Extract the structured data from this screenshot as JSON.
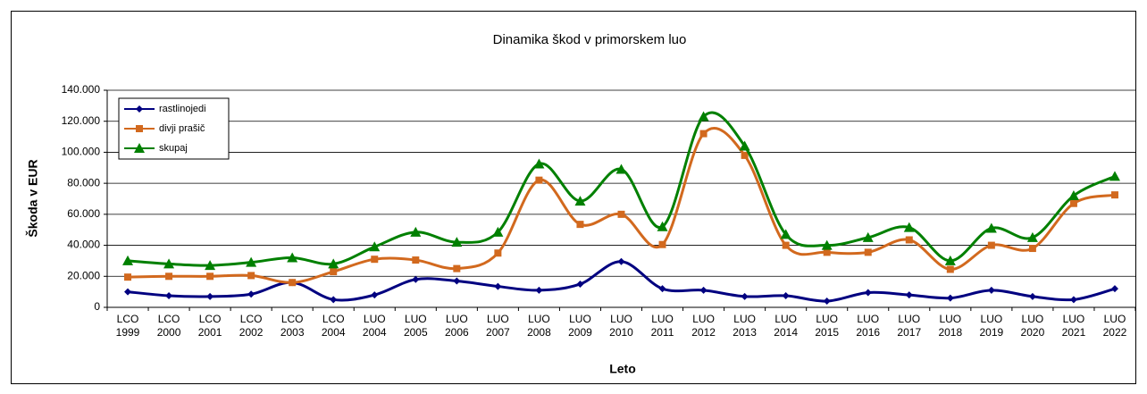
{
  "chart_data": {
    "type": "line",
    "title": "Dinamika škod v primorskem luo",
    "ylabel": "Škoda v EUR",
    "xlabel": "Leto",
    "categories": [
      [
        "LCO",
        "1999"
      ],
      [
        "LCO",
        "2000"
      ],
      [
        "LCO",
        "2001"
      ],
      [
        "LCO",
        "2002"
      ],
      [
        "LCO",
        "2003"
      ],
      [
        "LCO",
        "2004"
      ],
      [
        "LUO",
        "2004"
      ],
      [
        "LUO",
        "2005"
      ],
      [
        "LUO",
        "2006"
      ],
      [
        "LUO",
        "2007"
      ],
      [
        "LUO",
        "2008"
      ],
      [
        "LUO",
        "2009"
      ],
      [
        "LUO",
        "2010"
      ],
      [
        "LUO",
        "2011"
      ],
      [
        "LUO",
        "2012"
      ],
      [
        "LUO",
        "2013"
      ],
      [
        "LUO",
        "2014"
      ],
      [
        "LUO",
        "2015"
      ],
      [
        "LUO",
        "2016"
      ],
      [
        "LUO",
        "2017"
      ],
      [
        "LUO",
        "2018"
      ],
      [
        "LUO",
        "2019"
      ],
      [
        "LUO",
        "2020"
      ],
      [
        "LUO",
        "2021"
      ],
      [
        "LUO",
        "2022"
      ]
    ],
    "series": [
      {
        "name": "rastlinojedi",
        "color": "#000080",
        "marker": "diamond",
        "values": [
          10000,
          7500,
          7000,
          8500,
          16000,
          5000,
          8000,
          18000,
          17000,
          13500,
          11000,
          15000,
          29500,
          12000,
          11000,
          7000,
          7500,
          4000,
          9500,
          8000,
          6000,
          11000,
          7000,
          5000,
          12000
        ]
      },
      {
        "name": "divji prašič",
        "color": "#d2691e",
        "marker": "square",
        "values": [
          19500,
          20000,
          20000,
          20500,
          16000,
          23000,
          31000,
          30500,
          25000,
          35000,
          82000,
          53500,
          60000,
          40500,
          112000,
          98000,
          40000,
          35500,
          35500,
          43500,
          24500,
          40000,
          38000,
          67000,
          72500
        ]
      },
      {
        "name": "skupaj",
        "color": "#008000",
        "marker": "triangle",
        "values": [
          30000,
          28000,
          27000,
          29000,
          32000,
          28000,
          39000,
          48500,
          42000,
          48500,
          92500,
          68500,
          89000,
          52000,
          123000,
          104000,
          47000,
          40000,
          45000,
          51500,
          30000,
          51000,
          45000,
          72000,
          84500
        ]
      }
    ],
    "ylim": [
      0,
      140000
    ],
    "yticks": [
      0,
      {
        "value": 20000,
        "label": "20.000"
      },
      {
        "value": 40000,
        "label": "40.000"
      },
      {
        "value": 60000,
        "label": "60.000"
      },
      {
        "value": 80000,
        "label": "80.000"
      },
      {
        "value": 100000,
        "label": "100.000"
      },
      {
        "value": 120000,
        "label": "120.000"
      },
      {
        "value": 140000,
        "label": "140.000"
      }
    ],
    "grid": true,
    "legend": "top-left"
  }
}
